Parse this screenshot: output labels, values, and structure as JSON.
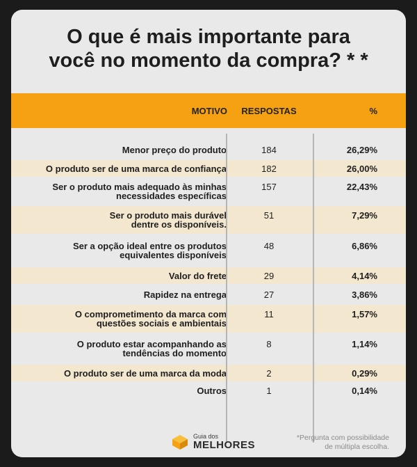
{
  "title_line1": "O que é mais importante para",
  "title_line2": "você no momento da compra? * *",
  "table": {
    "headers": {
      "motivo": "MOTIVO",
      "respostas": "RESPOSTAS",
      "pct": "%"
    },
    "rows": [
      {
        "motivo": [
          "Menor preço do produto"
        ],
        "respostas": "184",
        "pct": "26,29%"
      },
      {
        "motivo": [
          "O produto ser de uma marca de confiança"
        ],
        "respostas": "182",
        "pct": "26,00%"
      },
      {
        "motivo": [
          "Ser o produto mais adequado às minhas",
          "necessidades específicas"
        ],
        "respostas": "157",
        "pct": "22,43%"
      },
      {
        "motivo": [
          "Ser o produto mais durável",
          "dentre os disponíveis."
        ],
        "respostas": "51",
        "pct": "7,29%"
      },
      {
        "motivo": [
          "Ser a opção ideal entre os produtos",
          "equivalentes disponíveis"
        ],
        "respostas": "48",
        "pct": "6,86%"
      },
      {
        "motivo": [
          "Valor do frete"
        ],
        "respostas": "29",
        "pct": "4,14%"
      },
      {
        "motivo": [
          "Rapidez na entrega"
        ],
        "respostas": "27",
        "pct": "3,86%"
      },
      {
        "motivo": [
          "O comprometimento da marca com",
          "questões sociais e ambientais"
        ],
        "respostas": "11",
        "pct": "1,57%"
      },
      {
        "motivo": [
          "O produto estar acompanhando as",
          "tendências do momento"
        ],
        "respostas": "8",
        "pct": "1,14%"
      },
      {
        "motivo": [
          "O produto ser de uma marca da moda"
        ],
        "respostas": "2",
        "pct": "0,29%"
      },
      {
        "motivo": [
          "Outros"
        ],
        "respostas": "1",
        "pct": "0,14%"
      }
    ]
  },
  "logo": {
    "small": "Guia dos",
    "big": "MELHORES"
  },
  "footnote": {
    "line1": "*Pergunta com possibilidade",
    "line2": "de múltipla escolha."
  },
  "colors": {
    "accent": "#f5a111",
    "band": "#f3e8cf",
    "background": "#e9e9e9"
  }
}
